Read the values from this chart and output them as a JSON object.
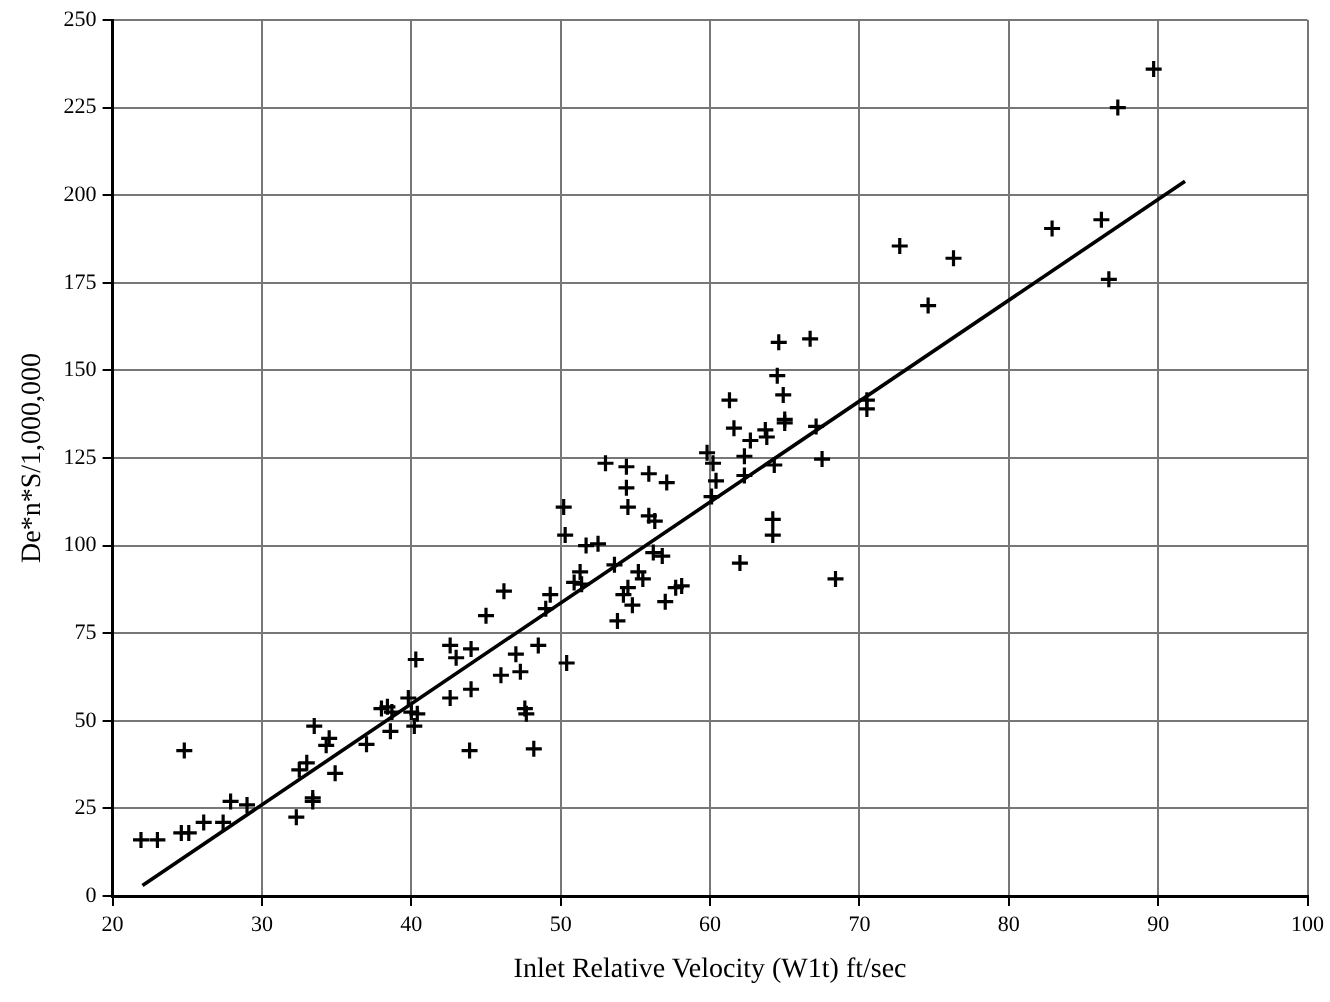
{
  "chart_data": {
    "type": "scatter",
    "xlabel": "Inlet Relative Velocity (W1t) ft/sec",
    "ylabel": "De*n*S/1,000,000",
    "xlim": [
      20,
      100
    ],
    "xticks": [
      20,
      30,
      40,
      50,
      60,
      70,
      80,
      90,
      100
    ],
    "ylim": [
      0,
      250
    ],
    "yticks": [
      0,
      25,
      50,
      75,
      100,
      125,
      150,
      175,
      200,
      225,
      250
    ],
    "grid": true,
    "legend": false,
    "marker": "cross",
    "series": [
      {
        "type": "scatter",
        "color": "#000000",
        "x": [
          21.9,
          23,
          24.6,
          25.1,
          24.8,
          26.1,
          27.4,
          27.9,
          29,
          32.3,
          32.5,
          33,
          33.4,
          33.4,
          33.5,
          34.3,
          34.5,
          34.9,
          37,
          38,
          38.4,
          38.7,
          38.6,
          39.8,
          40,
          40.2,
          40.4,
          40.3,
          42.6,
          42.6,
          43,
          44,
          43.9,
          44,
          45,
          46,
          46.2,
          47,
          47.3,
          47.6,
          47.7,
          48.2,
          48.5,
          49,
          49.3,
          50.4,
          50.2,
          50.3,
          50.9,
          51.4,
          51.3,
          51.7,
          52.5,
          53,
          54.4,
          54.4,
          54.5,
          53.6,
          53.8,
          54.2,
          54.5,
          54.8,
          55.2,
          55.5,
          55.9,
          55.9,
          56.3,
          56.2,
          56.8,
          57.1,
          57,
          57.7,
          58.1,
          59.8,
          60.2,
          60.4,
          60.1,
          61.3,
          61.6,
          62,
          62.3,
          62.3,
          62.7,
          63.7,
          63.8,
          64.3,
          64.6,
          66.7,
          64.5,
          64.9,
          65,
          65,
          67.1,
          67.5,
          70.5,
          70.5,
          64.2,
          64.2,
          68.4,
          72.7,
          76.3,
          74.6,
          82.9,
          86.2,
          86.7,
          87.3,
          89.7
        ],
        "values": [
          16,
          16,
          18,
          18,
          41.5,
          21,
          21,
          27,
          26,
          22.5,
          36,
          38,
          28,
          27,
          48.5,
          43,
          45,
          35,
          43.3,
          53.5,
          54,
          52.5,
          47,
          56.5,
          52.5,
          48.5,
          52,
          67.5,
          56.5,
          71.5,
          68,
          70.5,
          41.5,
          59,
          80,
          63,
          87,
          69,
          64,
          53.5,
          52,
          42,
          71.5,
          82,
          86,
          66.5,
          111,
          103,
          89.5,
          89,
          92.5,
          100,
          100.5,
          123.5,
          122.5,
          116.5,
          111,
          94.5,
          78.5,
          86,
          88,
          83,
          92.5,
          90.5,
          120.5,
          108.5,
          107,
          98,
          97,
          118,
          84,
          88,
          88.5,
          126.5,
          123.5,
          118.5,
          114,
          141.5,
          133.5,
          95,
          125.5,
          120,
          130,
          133,
          131,
          123,
          158,
          159,
          148.5,
          143,
          136,
          135,
          134,
          124.7,
          141.5,
          139,
          107.5,
          103,
          90.5,
          185.5,
          182,
          168.5,
          190.5,
          193,
          176,
          225,
          236
        ]
      },
      {
        "type": "line",
        "color": "#000000",
        "marker": "none",
        "x": [
          22,
          91.8
        ],
        "values": [
          3,
          204
        ]
      }
    ]
  }
}
